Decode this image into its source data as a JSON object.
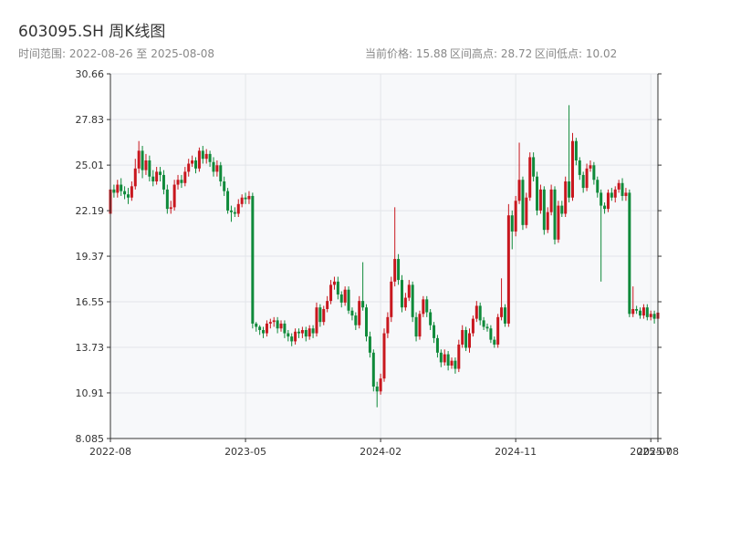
{
  "chart_data": {
    "type": "candlestick",
    "title": "603095.SH 周K线图",
    "subtitle": "时间范围: 2022-08-26 至 2025-08-08",
    "info": [
      "当前价格: 15.88",
      "区间高点: 28.72",
      "区间低点: 10.02"
    ],
    "up_color": "#c8171e",
    "down_color": "#0f8a3a",
    "grid": true,
    "ylim": [
      8.085,
      30.66
    ],
    "yticks": [
      8.085,
      10.91,
      13.73,
      16.55,
      19.37,
      22.19,
      25.01,
      27.83,
      30.66
    ],
    "xlim": [
      "2022-08-26",
      "2025-08-08"
    ],
    "xticks": [
      {
        "value": "2022-08-26",
        "label": "2022-08"
      },
      {
        "value": "2023-05-19",
        "label": "2023-05"
      },
      {
        "value": "2024-02-09",
        "label": "2024-02"
      },
      {
        "value": "2024-11-01",
        "label": "2024-11"
      },
      {
        "value": "2025-07-25",
        "label": "2025-07"
      },
      {
        "value": "2025-08-08",
        "label": "2025-08"
      }
    ],
    "x": [
      "2022-08-26",
      "2022-09-02",
      "2022-09-09",
      "2022-09-16",
      "2022-09-23",
      "2022-09-30",
      "2022-10-07",
      "2022-10-14",
      "2022-10-21",
      "2022-10-28",
      "2022-11-04",
      "2022-11-11",
      "2022-11-18",
      "2022-11-25",
      "2022-12-02",
      "2022-12-09",
      "2022-12-16",
      "2022-12-23",
      "2022-12-30",
      "2023-01-06",
      "2023-01-13",
      "2023-01-20",
      "2023-01-27",
      "2023-02-03",
      "2023-02-10",
      "2023-02-17",
      "2023-02-24",
      "2023-03-03",
      "2023-03-10",
      "2023-03-17",
      "2023-03-24",
      "2023-03-31",
      "2023-04-07",
      "2023-04-14",
      "2023-04-21",
      "2023-04-28",
      "2023-05-05",
      "2023-05-12",
      "2023-05-19",
      "2023-05-26",
      "2023-06-02",
      "2023-06-09",
      "2023-06-16",
      "2023-06-23",
      "2023-06-30",
      "2023-07-07",
      "2023-07-14",
      "2023-07-21",
      "2023-07-28",
      "2023-08-04",
      "2023-08-11",
      "2023-08-18",
      "2023-08-25",
      "2023-09-01",
      "2023-09-08",
      "2023-09-15",
      "2023-09-22",
      "2023-09-29",
      "2023-10-06",
      "2023-10-13",
      "2023-10-20",
      "2023-10-27",
      "2023-11-03",
      "2023-11-10",
      "2023-11-17",
      "2023-11-24",
      "2023-12-01",
      "2023-12-08",
      "2023-12-15",
      "2023-12-22",
      "2023-12-29",
      "2024-01-05",
      "2024-01-12",
      "2024-01-19",
      "2024-01-26",
      "2024-02-02",
      "2024-02-09",
      "2024-02-16",
      "2024-02-23",
      "2024-03-01",
      "2024-03-08",
      "2024-03-15",
      "2024-03-22",
      "2024-03-29",
      "2024-04-05",
      "2024-04-12",
      "2024-04-19",
      "2024-04-26",
      "2024-05-03",
      "2024-05-10",
      "2024-05-17",
      "2024-05-24",
      "2024-05-31",
      "2024-06-07",
      "2024-06-14",
      "2024-06-21",
      "2024-06-28",
      "2024-07-05",
      "2024-07-12",
      "2024-07-19",
      "2024-07-26",
      "2024-08-02",
      "2024-08-09",
      "2024-08-16",
      "2024-08-23",
      "2024-08-30",
      "2024-09-06",
      "2024-09-13",
      "2024-09-20",
      "2024-09-27",
      "2024-10-04",
      "2024-10-11",
      "2024-10-18",
      "2024-10-25",
      "2024-11-01",
      "2024-11-08",
      "2024-11-15",
      "2024-11-22",
      "2024-11-29",
      "2024-12-06",
      "2024-12-13",
      "2024-12-20",
      "2024-12-27",
      "2025-01-03",
      "2025-01-10",
      "2025-01-17",
      "2025-01-24",
      "2025-01-31",
      "2025-02-07",
      "2025-02-14",
      "2025-02-21",
      "2025-02-28",
      "2025-03-07",
      "2025-03-14",
      "2025-03-21",
      "2025-03-28",
      "2025-04-04",
      "2025-04-11",
      "2025-04-18",
      "2025-04-25",
      "2025-05-02",
      "2025-05-09",
      "2025-05-16",
      "2025-05-23",
      "2025-05-30",
      "2025-06-06",
      "2025-06-13",
      "2025-06-20",
      "2025-06-27",
      "2025-07-04",
      "2025-07-11",
      "2025-07-18",
      "2025-07-25",
      "2025-08-01",
      "2025-08-08"
    ],
    "open": [
      22.0,
      23.5,
      23.3,
      23.8,
      23.4,
      23.2,
      23.0,
      23.7,
      24.8,
      25.9,
      24.7,
      25.3,
      24.3,
      24.0,
      24.6,
      24.4,
      23.5,
      22.3,
      22.4,
      23.8,
      24.1,
      23.9,
      24.6,
      25.1,
      25.3,
      24.8,
      25.9,
      25.4,
      25.7,
      25.2,
      24.6,
      25.0,
      24.0,
      23.4,
      22.2,
      22.1,
      22.0,
      22.6,
      23.0,
      22.9,
      23.1,
      15.2,
      15.0,
      14.8,
      14.6,
      15.2,
      15.3,
      15.4,
      14.9,
      15.2,
      14.6,
      14.4,
      14.1,
      14.7,
      14.6,
      14.8,
      14.4,
      14.9,
      14.6,
      16.2,
      15.3,
      16.1,
      16.6,
      17.6,
      17.8,
      17.0,
      16.5,
      17.3,
      16.0,
      15.7,
      15.1,
      16.6,
      16.2,
      14.4,
      13.4,
      11.3,
      11.0,
      11.8,
      14.6,
      15.6,
      17.8,
      19.2,
      17.9,
      16.2,
      16.8,
      17.6,
      15.6,
      14.4,
      15.8,
      16.7,
      15.9,
      15.1,
      14.3,
      13.4,
      12.8,
      13.3,
      12.6,
      12.9,
      12.4,
      13.9,
      14.8,
      13.7,
      14.6,
      15.5,
      16.3,
      15.4,
      15.0,
      14.9,
      14.2,
      13.9,
      15.6,
      16.2,
      15.2,
      21.9,
      20.9,
      22.8,
      24.1,
      21.3,
      23.0,
      25.5,
      24.3,
      22.2,
      23.5,
      21.0,
      22.1,
      23.5,
      20.4,
      22.5,
      22.0,
      24.0,
      23.0,
      26.5,
      25.3,
      24.4,
      23.6,
      24.8,
      25.0,
      24.1,
      23.3,
      22.5,
      22.3,
      23.3,
      23.0,
      23.5,
      23.9,
      23.1,
      23.3,
      15.8,
      16.1,
      16.0,
      15.7,
      16.2,
      15.6,
      15.8,
      15.5
    ],
    "close": [
      23.5,
      23.3,
      23.8,
      23.4,
      23.2,
      23.0,
      23.7,
      24.8,
      25.9,
      24.7,
      25.3,
      24.3,
      24.0,
      24.6,
      24.4,
      23.5,
      22.3,
      22.4,
      23.8,
      24.1,
      23.9,
      24.6,
      25.1,
      25.3,
      24.8,
      25.9,
      25.4,
      25.7,
      25.2,
      24.6,
      25.0,
      24.0,
      23.4,
      22.2,
      22.1,
      22.0,
      22.6,
      23.0,
      22.9,
      23.1,
      15.2,
      15.0,
      14.8,
      14.6,
      15.2,
      15.3,
      15.4,
      14.9,
      15.2,
      14.6,
      14.4,
      14.1,
      14.7,
      14.6,
      14.8,
      14.4,
      14.9,
      14.6,
      16.2,
      15.3,
      16.1,
      16.6,
      17.6,
      17.8,
      17.0,
      16.5,
      17.3,
      16.0,
      15.7,
      15.1,
      16.6,
      16.2,
      14.4,
      13.4,
      11.3,
      11.0,
      11.8,
      14.6,
      15.6,
      17.8,
      19.2,
      17.9,
      16.2,
      16.8,
      17.6,
      15.6,
      14.4,
      15.8,
      16.7,
      15.9,
      15.1,
      14.3,
      13.4,
      12.8,
      13.3,
      12.6,
      12.9,
      12.4,
      13.9,
      14.8,
      13.7,
      14.6,
      15.5,
      16.3,
      15.4,
      15.0,
      14.9,
      14.2,
      13.9,
      15.6,
      16.2,
      15.2,
      21.9,
      20.9,
      22.8,
      24.1,
      21.3,
      23.0,
      25.5,
      24.3,
      22.2,
      23.5,
      21.0,
      22.1,
      23.5,
      20.4,
      22.5,
      22.0,
      24.0,
      23.0,
      26.5,
      25.3,
      24.4,
      23.6,
      24.8,
      25.0,
      24.1,
      23.3,
      22.5,
      22.3,
      23.3,
      23.0,
      23.5,
      23.9,
      23.1,
      23.3,
      15.8,
      16.1,
      16.0,
      15.7,
      16.2,
      15.6,
      15.8,
      15.5,
      15.88
    ],
    "high": [
      23.9,
      23.8,
      24.1,
      24.2,
      23.7,
      23.6,
      24.0,
      25.4,
      26.5,
      26.2,
      25.7,
      25.6,
      24.7,
      24.9,
      24.9,
      24.7,
      23.8,
      22.8,
      24.1,
      24.4,
      24.4,
      24.9,
      25.4,
      25.6,
      25.5,
      26.1,
      26.2,
      26.0,
      25.9,
      25.5,
      25.3,
      25.2,
      24.3,
      23.6,
      22.5,
      22.4,
      22.9,
      23.2,
      23.3,
      23.4,
      23.3,
      15.3,
      15.1,
      15.0,
      15.4,
      15.5,
      15.6,
      15.6,
      15.4,
      15.4,
      14.8,
      14.6,
      14.9,
      14.9,
      15.0,
      15.0,
      15.1,
      15.1,
      16.5,
      16.4,
      16.3,
      16.9,
      17.9,
      18.1,
      18.1,
      17.2,
      17.5,
      17.5,
      16.2,
      15.9,
      16.9,
      19.0,
      16.4,
      14.7,
      13.6,
      11.6,
      12.1,
      14.9,
      15.9,
      18.1,
      22.4,
      19.5,
      18.2,
      17.1,
      17.9,
      17.8,
      15.9,
      16.0,
      16.9,
      16.9,
      16.1,
      15.3,
      14.5,
      13.6,
      13.6,
      13.5,
      13.1,
      13.1,
      14.2,
      15.1,
      15.0,
      14.9,
      15.7,
      16.6,
      16.5,
      15.6,
      15.2,
      15.1,
      14.4,
      15.8,
      18.0,
      16.4,
      22.6,
      22.2,
      23.1,
      26.4,
      24.3,
      23.3,
      25.8,
      25.8,
      24.6,
      23.8,
      23.7,
      22.4,
      23.8,
      23.7,
      22.8,
      22.8,
      24.3,
      28.72,
      27.0,
      26.7,
      25.5,
      24.6,
      25.1,
      25.3,
      25.2,
      24.3,
      23.5,
      22.7,
      23.5,
      23.6,
      23.7,
      24.1,
      24.2,
      23.6,
      23.5,
      17.5,
      16.3,
      16.2,
      16.4,
      16.4,
      16.0,
      16.0,
      16.0
    ],
    "low": [
      21.8,
      23.0,
      23.0,
      23.1,
      22.9,
      22.6,
      22.8,
      23.5,
      24.5,
      24.2,
      24.4,
      24.0,
      23.7,
      23.8,
      24.0,
      23.2,
      22.0,
      22.0,
      22.2,
      23.5,
      23.6,
      23.7,
      24.3,
      24.9,
      24.5,
      24.6,
      25.1,
      25.1,
      24.9,
      24.3,
      24.3,
      23.7,
      23.1,
      22.0,
      21.5,
      21.8,
      21.8,
      22.4,
      22.6,
      22.6,
      14.9,
      14.7,
      14.5,
      14.3,
      14.4,
      14.9,
      15.0,
      14.6,
      14.7,
      14.3,
      14.1,
      13.8,
      13.9,
      14.3,
      14.3,
      14.1,
      14.2,
      14.3,
      14.4,
      15.0,
      15.1,
      15.9,
      16.4,
      17.3,
      16.7,
      16.2,
      16.3,
      15.8,
      15.4,
      14.8,
      14.9,
      16.0,
      14.1,
      13.1,
      11.0,
      10.02,
      10.8,
      11.6,
      14.3,
      15.3,
      17.5,
      17.6,
      15.9,
      16.0,
      16.6,
      15.3,
      14.1,
      14.2,
      15.6,
      15.6,
      14.8,
      14.0,
      13.1,
      12.5,
      12.6,
      12.3,
      12.4,
      12.1,
      12.2,
      13.7,
      13.5,
      13.4,
      14.4,
      15.3,
      15.1,
      14.8,
      14.7,
      14.0,
      13.7,
      13.7,
      15.4,
      15.0,
      15.0,
      19.8,
      20.6,
      22.6,
      21.0,
      21.1,
      22.8,
      24.0,
      21.9,
      22.0,
      20.7,
      20.8,
      21.9,
      20.1,
      20.2,
      21.8,
      21.8,
      22.7,
      22.8,
      25.0,
      24.1,
      23.3,
      23.4,
      24.6,
      23.8,
      23.0,
      17.8,
      22.0,
      22.1,
      22.8,
      22.7,
      23.3,
      22.8,
      22.8,
      15.6,
      15.6,
      15.8,
      15.5,
      15.5,
      15.4,
      15.4,
      15.2,
      15.3
    ]
  }
}
